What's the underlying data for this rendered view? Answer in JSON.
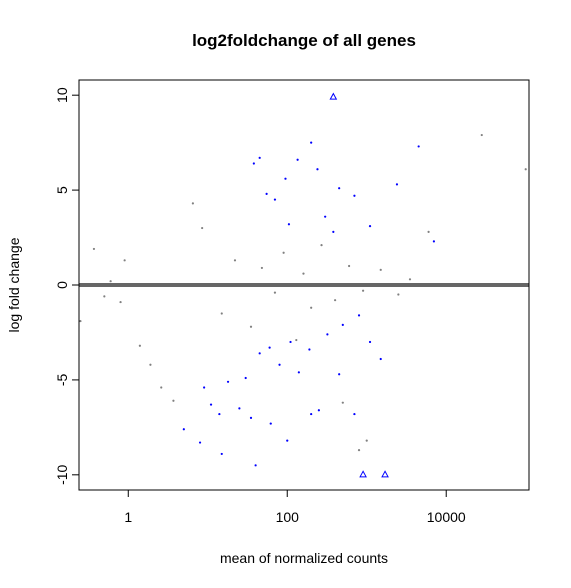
{
  "chart_data": {
    "type": "scatter",
    "title": "log2foldchange of all genes",
    "xlabel": "mean of normalized counts",
    "ylabel": "log fold change",
    "x_scale": "log10",
    "xlim": [
      0.24,
      110000
    ],
    "ylim": [
      -10.8,
      10.8
    ],
    "x_ticks": [
      {
        "value": 1,
        "label": "1"
      },
      {
        "value": 100,
        "label": "100"
      },
      {
        "value": 10000,
        "label": "10000"
      }
    ],
    "y_ticks": [
      {
        "value": -10,
        "label": "-10"
      },
      {
        "value": -5,
        "label": "-5"
      },
      {
        "value": 0,
        "label": "0"
      },
      {
        "value": 5,
        "label": "5"
      },
      {
        "value": 10,
        "label": "10"
      }
    ],
    "grid": false,
    "legend": "none",
    "reference_line": {
      "y": 0,
      "color": "#666666"
    },
    "colors": {
      "significant": "#0000ff",
      "non_significant": "#808080",
      "axis": "#000000"
    },
    "series": [
      {
        "color": "#808080",
        "marker": "point",
        "points": [
          [
            0.25,
            -1.9
          ],
          [
            0.37,
            1.9
          ],
          [
            0.5,
            -0.6
          ],
          [
            0.6,
            0.2
          ],
          [
            0.8,
            -0.9
          ],
          [
            0.9,
            1.3
          ],
          [
            1.4,
            -3.2
          ],
          [
            1.9,
            -4.2
          ],
          [
            2.6,
            -5.4
          ],
          [
            3.7,
            -6.1
          ],
          [
            6.5,
            4.3
          ],
          [
            8.5,
            3.0
          ],
          [
            15,
            -1.5
          ],
          [
            22,
            1.3
          ],
          [
            35,
            -2.2
          ],
          [
            48,
            0.9
          ],
          [
            70,
            -0.4
          ],
          [
            90,
            1.7
          ],
          [
            130,
            -2.9
          ],
          [
            160,
            0.6
          ],
          [
            200,
            -1.2
          ],
          [
            270,
            2.1
          ],
          [
            400,
            -0.8
          ],
          [
            600,
            1.0
          ],
          [
            900,
            -0.3
          ],
          [
            1500,
            0.8
          ],
          [
            2500,
            -0.5
          ],
          [
            3500,
            0.3
          ],
          [
            6000,
            2.8
          ],
          [
            28000,
            7.9
          ],
          [
            100000,
            6.1
          ],
          [
            500,
            -6.2
          ],
          [
            800,
            -8.7
          ],
          [
            1000,
            -8.2
          ]
        ]
      },
      {
        "color": "#0000ff",
        "marker": "point",
        "points": [
          [
            38,
            6.4
          ],
          [
            45,
            6.7
          ],
          [
            55,
            4.8
          ],
          [
            70,
            4.5
          ],
          [
            105,
            3.2
          ],
          [
            135,
            6.6
          ],
          [
            240,
            6.1
          ],
          [
            300,
            3.6
          ],
          [
            450,
            5.1
          ],
          [
            700,
            4.7
          ],
          [
            1100,
            3.1
          ],
          [
            2400,
            5.3
          ],
          [
            4500,
            7.3
          ],
          [
            7000,
            2.3
          ],
          [
            95,
            5.6
          ],
          [
            200,
            7.5
          ],
          [
            380,
            2.8
          ],
          [
            9,
            -5.4
          ],
          [
            11,
            -6.3
          ],
          [
            14,
            -6.8
          ],
          [
            18,
            -5.1
          ],
          [
            25,
            -6.5
          ],
          [
            30,
            -4.9
          ],
          [
            45,
            -3.6
          ],
          [
            60,
            -3.3
          ],
          [
            80,
            -4.2
          ],
          [
            110,
            -3.0
          ],
          [
            140,
            -4.6
          ],
          [
            190,
            -3.4
          ],
          [
            250,
            -6.6
          ],
          [
            320,
            -2.6
          ],
          [
            450,
            -4.7
          ],
          [
            700,
            -6.8
          ],
          [
            1100,
            -3.0
          ],
          [
            5,
            -7.6
          ],
          [
            8,
            -8.3
          ],
          [
            15,
            -8.9
          ],
          [
            40,
            -9.5
          ],
          [
            62,
            -7.3
          ],
          [
            100,
            -8.2
          ],
          [
            200,
            -6.8
          ],
          [
            35,
            -7.0
          ],
          [
            500,
            -2.1
          ],
          [
            800,
            -1.6
          ],
          [
            1500,
            -3.9
          ]
        ]
      },
      {
        "color": "#0000ff",
        "marker": "triangle",
        "points": [
          [
            380,
            9.9
          ],
          [
            900,
            -10.0
          ],
          [
            1700,
            -10.0
          ]
        ]
      }
    ]
  }
}
